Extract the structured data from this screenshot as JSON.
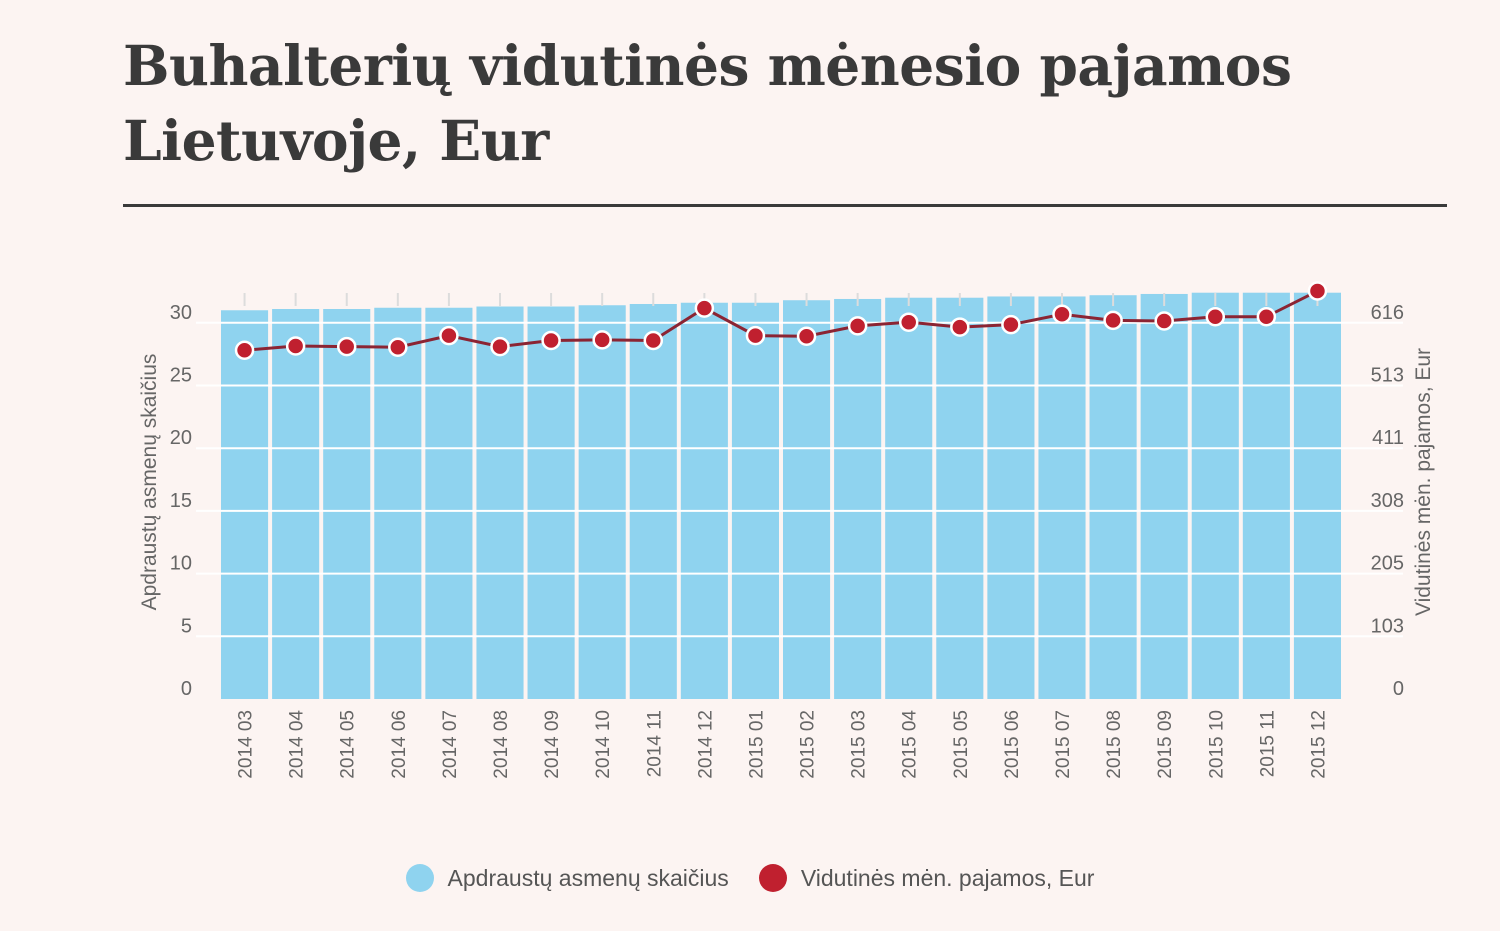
{
  "title": "Buhalterių vidutinės mėnesio pajamos Lietuvoje, Eur",
  "colors": {
    "bar": "#8fd3ef",
    "line": "#8b2433",
    "point": "#c0202f",
    "grid": "#ffffff"
  },
  "legend": [
    {
      "label": "Apdraustų asmenų skaičius",
      "color": "#8fd3ef"
    },
    {
      "label": "Vidutinės mėn. pajamos, Eur",
      "color": "#c0202f"
    }
  ],
  "chart_data": {
    "type": "bar+line",
    "categories": [
      "2014 03",
      "2014 04",
      "2014 05",
      "2014 06",
      "2014 07",
      "2014 08",
      "2014 09",
      "2014 10",
      "2014 11",
      "2014 12",
      "2015 01",
      "2015 02",
      "2015 03",
      "2015 04",
      "2015 05",
      "2015 06",
      "2015 07",
      "2015 08",
      "2015 09",
      "2015 10",
      "2015 11",
      "2015 12"
    ],
    "series": [
      {
        "name": "Apdraustų asmenų skaičius",
        "type": "bar",
        "axis": "left",
        "values": [
          31.0,
          31.1,
          31.1,
          31.2,
          31.2,
          31.3,
          31.3,
          31.4,
          31.5,
          31.6,
          31.6,
          31.8,
          31.9,
          32.0,
          32.0,
          32.1,
          32.1,
          32.2,
          32.3,
          32.4,
          32.4,
          32.4
        ]
      },
      {
        "name": "Vidutinės mėn. pajamos, Eur",
        "type": "line",
        "axis": "right",
        "values": [
          571,
          578,
          577,
          576,
          595,
          577,
          587,
          588,
          587,
          640,
          595,
          594,
          611,
          617,
          609,
          613,
          630,
          620,
          619,
          626,
          626,
          668
        ]
      }
    ],
    "left_axis": {
      "label": "Apdraustų asmenų skaičius",
      "ticks": [
        "0",
        "5",
        "10",
        "15",
        "20",
        "25",
        "30"
      ],
      "range": [
        0,
        30
      ]
    },
    "right_axis": {
      "label": "Vidutinės mėn. pajamos, Eur",
      "ticks": [
        "0",
        "103",
        "205",
        "308",
        "411",
        "513",
        "616"
      ],
      "range": [
        0,
        616
      ]
    },
    "grid": true,
    "legend_position": "bottom"
  }
}
